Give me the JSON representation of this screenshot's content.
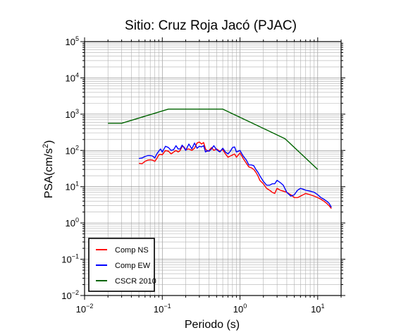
{
  "chart_data": {
    "type": "line",
    "title": "Sitio: Cruz Roja Jacó (PJAC)",
    "xlabel": "Periodo (s)",
    "ylabel_main": "PSA(cm/s",
    "ylabel_sup": "2",
    "ylabel_close": ")",
    "x_scale": "log",
    "y_scale": "log",
    "xlim": [
      0.01,
      20
    ],
    "ylim": [
      0.01,
      100000
    ],
    "grid": true,
    "legend_position": "bottom-left",
    "x_ticks": [
      {
        "value": 0.01,
        "base": "10",
        "exp": "−2"
      },
      {
        "value": 0.1,
        "base": "10",
        "exp": "−1"
      },
      {
        "value": 1,
        "base": "10",
        "exp": "0"
      },
      {
        "value": 10,
        "base": "10",
        "exp": "1"
      }
    ],
    "y_ticks": [
      {
        "value": 0.01,
        "base": "10",
        "exp": "−2"
      },
      {
        "value": 0.1,
        "base": "10",
        "exp": "−1"
      },
      {
        "value": 1,
        "base": "10",
        "exp": "0"
      },
      {
        "value": 10,
        "base": "10",
        "exp": "1"
      },
      {
        "value": 100,
        "base": "10",
        "exp": "2"
      },
      {
        "value": 1000,
        "base": "10",
        "exp": "3"
      },
      {
        "value": 10000,
        "base": "10",
        "exp": "4"
      },
      {
        "value": 100000,
        "base": "10",
        "exp": "5"
      }
    ],
    "series": [
      {
        "name": "Comp NS",
        "color": "#ff0000",
        "x": [
          0.05,
          0.055,
          0.06,
          0.065,
          0.07,
          0.075,
          0.08,
          0.085,
          0.09,
          0.095,
          0.1,
          0.11,
          0.12,
          0.13,
          0.14,
          0.15,
          0.16,
          0.17,
          0.18,
          0.19,
          0.2,
          0.22,
          0.24,
          0.26,
          0.28,
          0.3,
          0.32,
          0.34,
          0.36,
          0.38,
          0.4,
          0.43,
          0.46,
          0.5,
          0.55,
          0.6,
          0.65,
          0.7,
          0.75,
          0.8,
          0.85,
          0.9,
          1.0,
          1.1,
          1.2,
          1.3,
          1.4,
          1.5,
          1.6,
          1.7,
          1.8,
          2.0,
          2.2,
          2.4,
          2.6,
          2.8,
          3.0,
          3.3,
          3.6,
          4.0,
          4.5,
          5.0,
          5.5,
          6.0,
          6.5,
          7.0,
          8.0,
          9.0,
          10.0,
          11.0,
          12.0,
          13.0,
          14.0,
          15.0
        ],
        "values": [
          44,
          43,
          50,
          54,
          55,
          54,
          50,
          60,
          75,
          78,
          76,
          100,
          95,
          80,
          90,
          100,
          90,
          100,
          130,
          125,
          105,
          110,
          100,
          115,
          160,
          170,
          150,
          165,
          110,
          95,
          100,
          120,
          100,
          110,
          95,
          105,
          80,
          65,
          70,
          75,
          80,
          65,
          85,
          60,
          45,
          35,
          33,
          30,
          25,
          20,
          15,
          12,
          9,
          8,
          7,
          6.5,
          9,
          8,
          7.5,
          7,
          6,
          5,
          5,
          5.5,
          6,
          6.5,
          6,
          5.5,
          5,
          4.5,
          4,
          3.5,
          3,
          2.5
        ]
      },
      {
        "name": "Comp EW",
        "color": "#0000ff",
        "x": [
          0.05,
          0.055,
          0.06,
          0.065,
          0.07,
          0.075,
          0.08,
          0.085,
          0.09,
          0.095,
          0.1,
          0.11,
          0.12,
          0.13,
          0.14,
          0.15,
          0.16,
          0.17,
          0.18,
          0.19,
          0.2,
          0.22,
          0.24,
          0.26,
          0.28,
          0.3,
          0.32,
          0.34,
          0.36,
          0.38,
          0.4,
          0.43,
          0.46,
          0.5,
          0.55,
          0.6,
          0.65,
          0.7,
          0.75,
          0.8,
          0.85,
          0.9,
          1.0,
          1.1,
          1.2,
          1.3,
          1.4,
          1.5,
          1.6,
          1.7,
          1.8,
          2.0,
          2.2,
          2.4,
          2.6,
          2.8,
          3.0,
          3.3,
          3.6,
          4.0,
          4.5,
          5.0,
          5.5,
          6.0,
          6.5,
          7.0,
          8.0,
          9.0,
          10.0,
          11.0,
          12.0,
          13.0,
          14.0,
          15.0
        ],
        "values": [
          60,
          62,
          68,
          72,
          72,
          70,
          62,
          80,
          95,
          110,
          90,
          130,
          120,
          100,
          105,
          135,
          110,
          110,
          140,
          120,
          100,
          150,
          110,
          160,
          115,
          130,
          125,
          135,
          90,
          100,
          95,
          110,
          135,
          105,
          90,
          115,
          90,
          80,
          95,
          120,
          125,
          90,
          100,
          70,
          55,
          40,
          40,
          38,
          30,
          25,
          20,
          14,
          11,
          11,
          12,
          12,
          15,
          13,
          11,
          7,
          5.5,
          6,
          8,
          9,
          8.5,
          8,
          7.5,
          7,
          6,
          5,
          4.5,
          4,
          3.5,
          2.7
        ]
      },
      {
        "name": "CSCR 2010",
        "color": "#006400",
        "x": [
          0.02,
          0.03,
          0.12,
          0.6,
          3.8,
          10
        ],
        "values": [
          560,
          560,
          1380,
          1380,
          210,
          30
        ]
      }
    ]
  }
}
